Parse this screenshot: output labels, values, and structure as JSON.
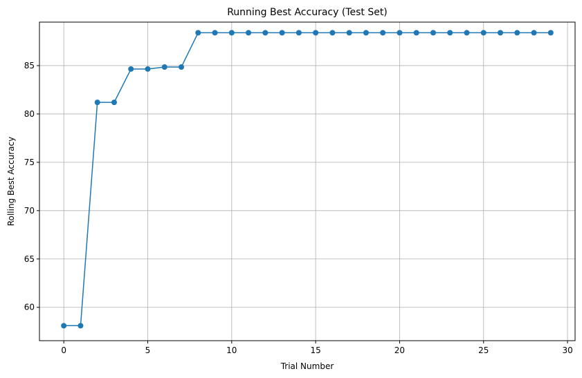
{
  "chart_data": {
    "type": "line",
    "title": "Running Best Accuracy (Test Set)",
    "xlabel": "Trial Number",
    "ylabel": "Rolling Best Accuracy",
    "xlim": [
      -1.45,
      30.45
    ],
    "ylim": [
      56.55,
      89.5
    ],
    "xticks": [
      0,
      5,
      10,
      15,
      20,
      25,
      30
    ],
    "yticks": [
      60,
      65,
      70,
      75,
      80,
      85
    ],
    "grid": true,
    "series": [
      {
        "color": "#1f77b4",
        "marker": "circle",
        "x": [
          0,
          1,
          2,
          3,
          4,
          5,
          6,
          7,
          8,
          9,
          10,
          11,
          12,
          13,
          14,
          15,
          16,
          17,
          18,
          19,
          20,
          21,
          22,
          23,
          24,
          25,
          26,
          27,
          28,
          29
        ],
        "y": [
          58.1,
          58.1,
          81.2,
          81.2,
          84.65,
          84.65,
          84.85,
          84.85,
          88.4,
          88.4,
          88.4,
          88.4,
          88.4,
          88.4,
          88.4,
          88.4,
          88.4,
          88.4,
          88.4,
          88.4,
          88.4,
          88.4,
          88.4,
          88.4,
          88.4,
          88.4,
          88.4,
          88.4,
          88.4,
          88.4
        ]
      }
    ]
  }
}
